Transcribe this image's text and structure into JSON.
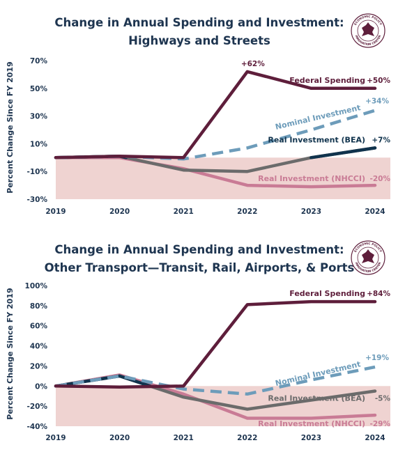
{
  "colors": {
    "title": "#1e3550",
    "federal": "#5e1e3b",
    "nominal": "#6d9cba",
    "real_bea_neg": "#6b6b6b",
    "real_bea_pos": "#10334d",
    "nhcci": "#c97b95",
    "shade": "#efd3d1",
    "axis_text": "#1e3550"
  },
  "logo": {
    "text": "ECONOMIC POLICY INNOVATION CENTER"
  },
  "chart_data": [
    {
      "type": "line",
      "title": "Change in Annual Spending and Investment:",
      "subtitle": "Highways and Streets",
      "ylabel": "Percent Change Since FY 2019",
      "xlabel": "",
      "categories": [
        "2019",
        "2020",
        "2021",
        "2022",
        "2023",
        "2024"
      ],
      "ylim": [
        -30,
        70
      ],
      "yticks": [
        70,
        50,
        30,
        10,
        -10,
        -30
      ],
      "ytick_labels": [
        "70%",
        "50%",
        "30%",
        "10%",
        "-10%",
        "-30%"
      ],
      "shaded_below_zero": true,
      "series": [
        {
          "name": "Federal Spending",
          "end_label": "+50%",
          "values": [
            0,
            1,
            0,
            62,
            50,
            50
          ],
          "style": "solid",
          "color_key": "federal",
          "peak_label": "+62%"
        },
        {
          "name": "Nominal Investment",
          "end_label": "+34%",
          "values": [
            0,
            1,
            -1,
            7,
            20,
            34
          ],
          "style": "dashed",
          "color_key": "nominal"
        },
        {
          "name": "Real Investment (BEA)",
          "end_label": "+7%",
          "values": [
            0,
            1,
            -9,
            -10,
            0,
            7
          ],
          "style": "solid",
          "color_key": "real_bea_neg"
        },
        {
          "name": "Real Investment (NHCCI)",
          "end_label": "-20%",
          "values": [
            0,
            0,
            -8,
            -20,
            -21,
            -20
          ],
          "style": "solid",
          "color_key": "nhcci"
        }
      ]
    },
    {
      "type": "line",
      "title": "Change in Annual Spending and Investment:",
      "subtitle": "Other Transport—Transit, Rail, Airports, & Ports",
      "ylabel": "Percent Change Since FY 2019",
      "xlabel": "",
      "categories": [
        "2019",
        "2020",
        "2021",
        "2022",
        "2023",
        "2024"
      ],
      "ylim": [
        -40,
        100
      ],
      "yticks": [
        100,
        80,
        60,
        40,
        20,
        0,
        -20,
        -40
      ],
      "ytick_labels": [
        "100%",
        "80%",
        "60%",
        "40%",
        "20%",
        "0%",
        "-20%",
        "-40%"
      ],
      "shaded_below_zero": true,
      "series": [
        {
          "name": "Federal Spending",
          "end_label": "+84%",
          "values": [
            0,
            -1,
            0,
            81,
            84,
            84
          ],
          "style": "solid",
          "color_key": "federal"
        },
        {
          "name": "Nominal Investment",
          "end_label": "+19%",
          "values": [
            0,
            10,
            -3,
            -8,
            6,
            19
          ],
          "style": "dashed",
          "color_key": "nominal"
        },
        {
          "name": "Real Investment (BEA)",
          "end_label": "-5%",
          "values": [
            0,
            10,
            -11,
            -23,
            -14,
            -5
          ],
          "style": "solid",
          "color_key": "real_bea_neg"
        },
        {
          "name": "Real Investment (NHCCI)",
          "end_label": "-29%",
          "values": [
            0,
            11,
            -8,
            -32,
            -32,
            -29
          ],
          "style": "solid",
          "color_key": "nhcci"
        }
      ]
    }
  ]
}
